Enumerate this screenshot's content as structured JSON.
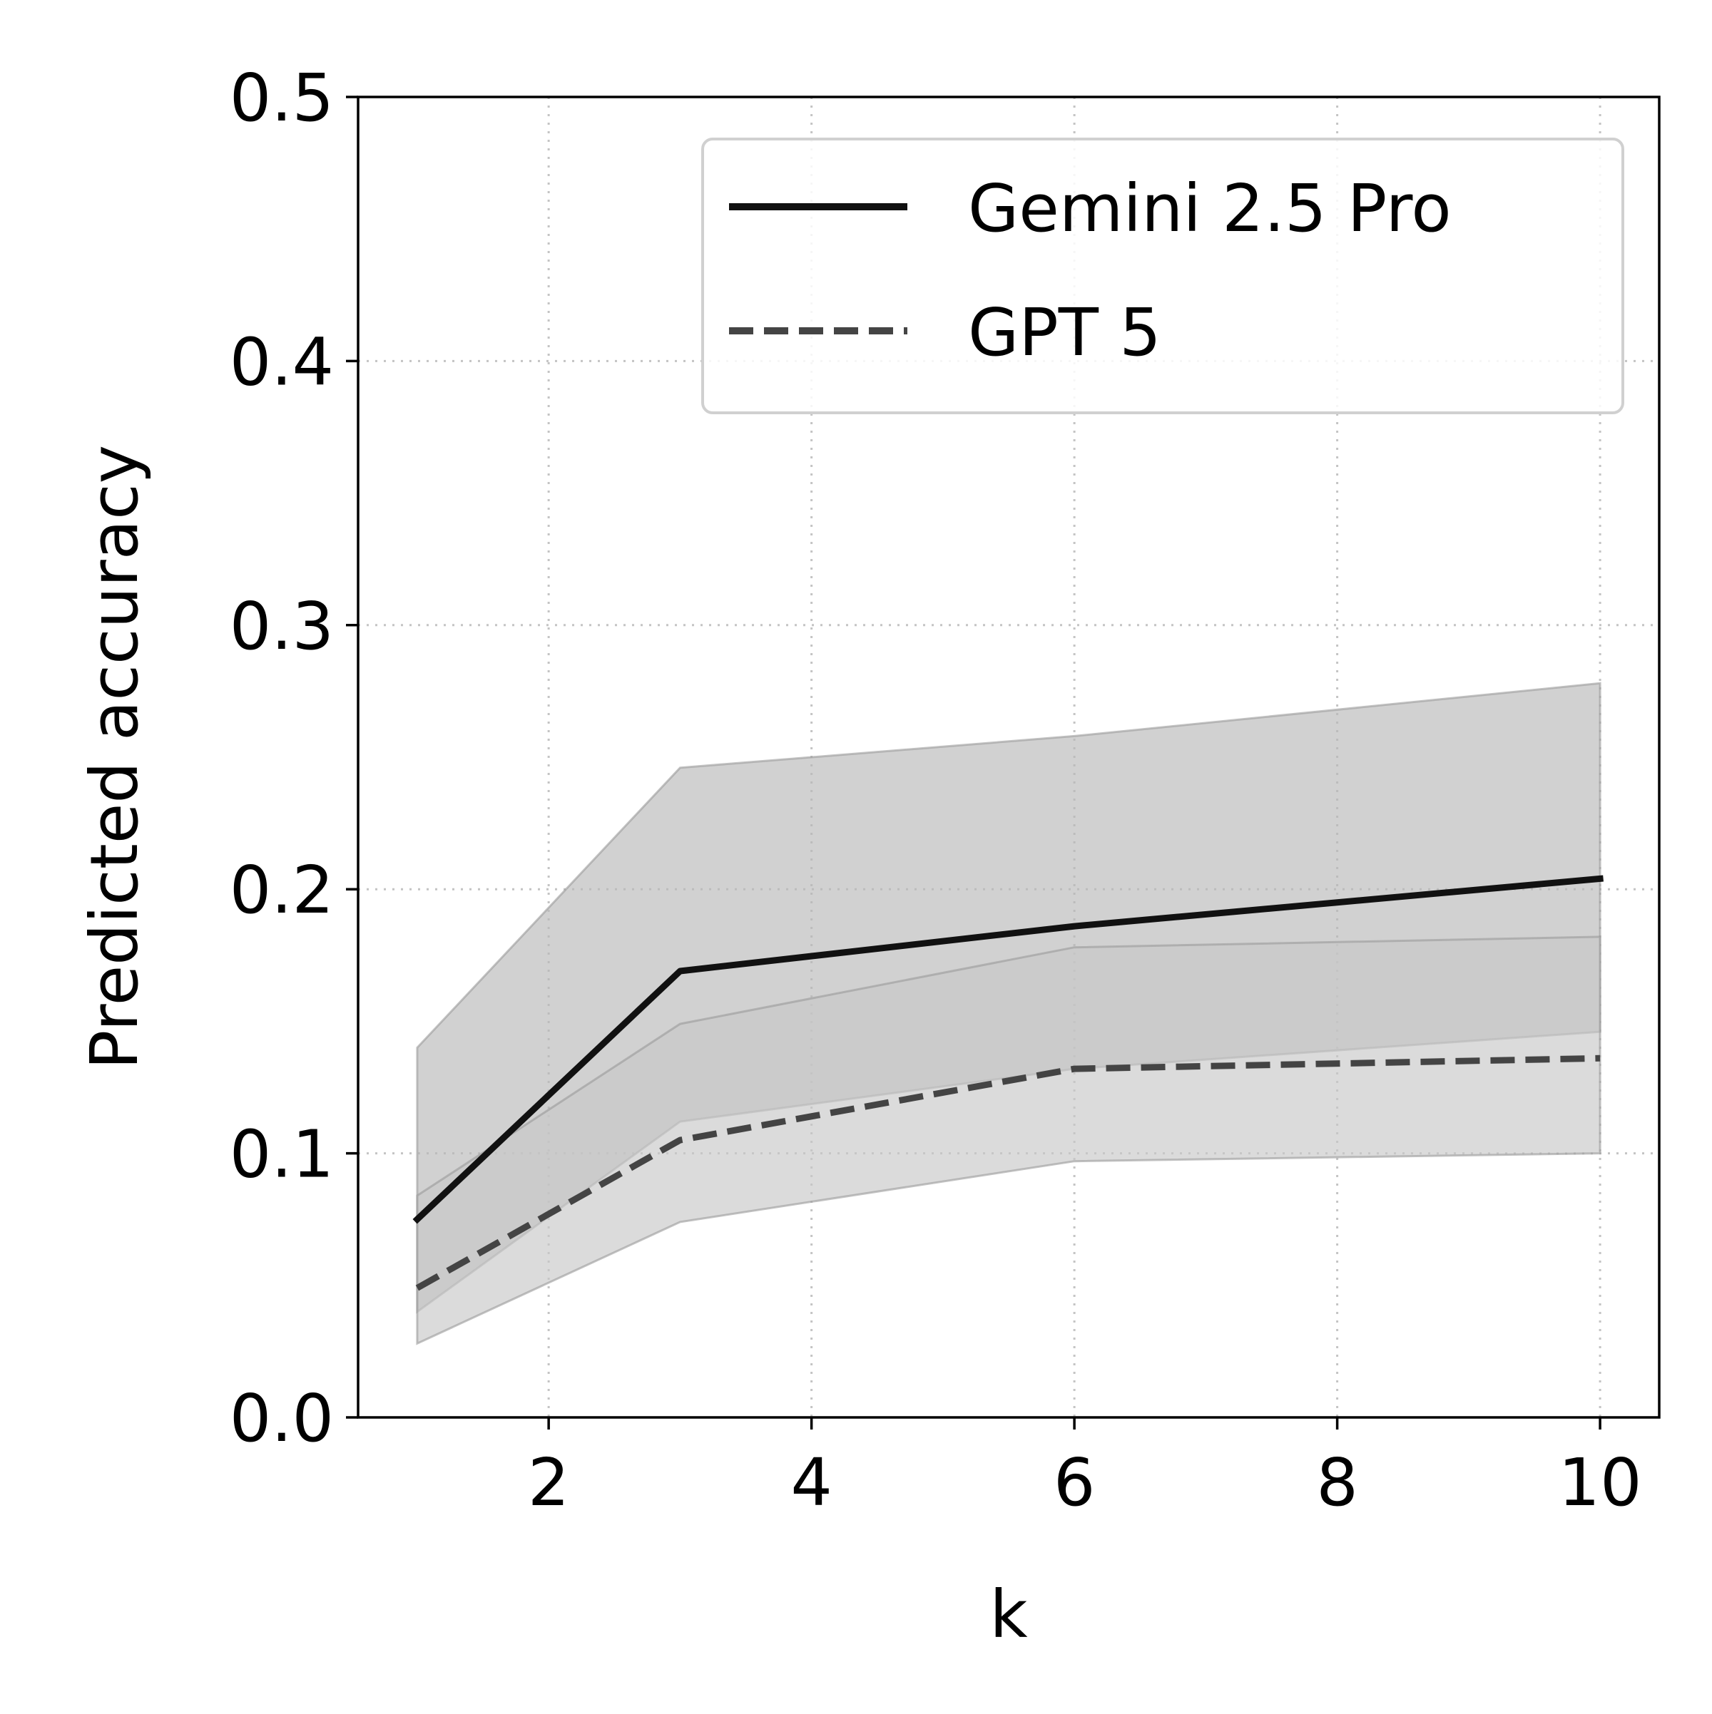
{
  "chart_data": {
    "type": "line",
    "xlabel": "k",
    "ylabel": "Predicted accuracy",
    "xlim": [
      0.55,
      10.45
    ],
    "ylim": [
      0.0,
      0.5
    ],
    "xticks": [
      2,
      4,
      6,
      8,
      10
    ],
    "xtick_labels": [
      "2",
      "4",
      "6",
      "8",
      "10"
    ],
    "yticks": [
      0.0,
      0.1,
      0.2,
      0.3,
      0.4,
      0.5
    ],
    "ytick_labels": [
      "0.0",
      "0.1",
      "0.2",
      "0.3",
      "0.4",
      "0.5"
    ],
    "grid": true,
    "legend_position": "upper-right",
    "series": [
      {
        "name": "Gemini 2.5 Pro",
        "style": "solid",
        "color": "#111111",
        "band_color": "#b8b8b8",
        "x": [
          1,
          3,
          6,
          10
        ],
        "y": [
          0.075,
          0.169,
          0.186,
          0.204
        ],
        "lower": [
          0.04,
          0.112,
          0.132,
          0.146
        ],
        "upper": [
          0.14,
          0.246,
          0.258,
          0.278
        ]
      },
      {
        "name": "GPT 5",
        "style": "dashed",
        "color": "#444444",
        "band_color": "#c8c8c8",
        "x": [
          1,
          3,
          6,
          10
        ],
        "y": [
          0.049,
          0.105,
          0.132,
          0.136
        ],
        "lower": [
          0.028,
          0.074,
          0.097,
          0.1
        ],
        "upper": [
          0.084,
          0.149,
          0.178,
          0.182
        ]
      }
    ]
  }
}
